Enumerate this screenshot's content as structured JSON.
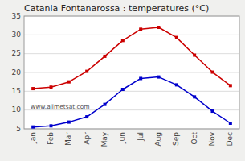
{
  "chart_data": {
    "type": "line",
    "title": "Catania Fontanarossa : temperatures (°C)",
    "categories": [
      "Jan",
      "Feb",
      "Mar",
      "Apr",
      "May",
      "Jun",
      "Jul",
      "Aug",
      "Sep",
      "Oct",
      "Nov",
      "Dec"
    ],
    "series": [
      {
        "color": "#cc0000",
        "values": [
          15.7,
          16.1,
          17.5,
          20.3,
          24.3,
          28.5,
          31.5,
          32.0,
          29.3,
          24.6,
          20.1,
          16.5
        ]
      },
      {
        "color": "#0000cc",
        "values": [
          5.5,
          5.8,
          6.8,
          8.2,
          11.5,
          15.5,
          18.4,
          18.8,
          16.7,
          13.5,
          9.7,
          6.5
        ]
      }
    ],
    "marker": "square",
    "ylim": [
      5,
      35
    ],
    "yticks": [
      5,
      10,
      15,
      20,
      25,
      30,
      35
    ],
    "grid": true,
    "annotations": [
      "www.allmetsat.com"
    ]
  }
}
